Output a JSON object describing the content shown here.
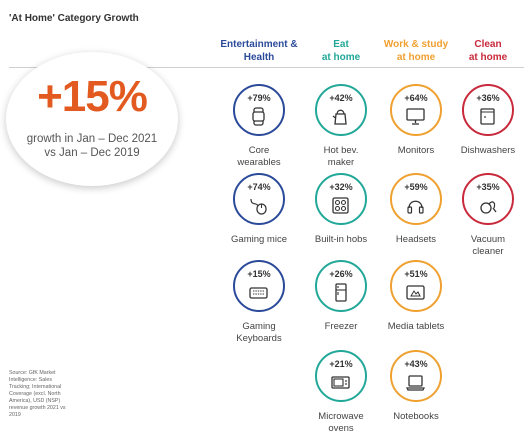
{
  "title": "'At Home' Category Growth",
  "headline": {
    "value": "+15%",
    "line1": "growth in Jan – Dec 2021",
    "line2": "vs Jan – Dec 2019"
  },
  "source": "Source: GfK Market Intelligence: Sales Tracking; International Coverage (excl. North America), USD (NSP) revenue growth 2021 vs 2019",
  "colors": {
    "entertainment": "#2b4a9a",
    "eat": "#21a898",
    "work": "#f0a030",
    "clean": "#c8293b",
    "headline": "#e35a20"
  },
  "columns": [
    {
      "id": "entertainment",
      "line1": "Entertainment &",
      "line2": "Health",
      "items": [
        {
          "pct": "+79%",
          "label1": "Core",
          "label2": "wearables",
          "icon": "smartwatch-icon"
        },
        {
          "pct": "+74%",
          "label1": "Gaming mice",
          "label2": "",
          "icon": "mouse-icon"
        },
        {
          "pct": "+15%",
          "label1": "Gaming",
          "label2": "Keyboards",
          "icon": "keyboard-icon"
        }
      ]
    },
    {
      "id": "eat",
      "line1": "Eat",
      "line2": "at home",
      "items": [
        {
          "pct": "+42%",
          "label1": "Hot bev.",
          "label2": "maker",
          "icon": "kettle-icon"
        },
        {
          "pct": "+32%",
          "label1": "Built-in hobs",
          "label2": "",
          "icon": "hob-icon"
        },
        {
          "pct": "+26%",
          "label1": "Freezer",
          "label2": "",
          "icon": "freezer-icon"
        },
        {
          "pct": "+21%",
          "label1": "Microwave",
          "label2": "ovens",
          "icon": "microwave-icon"
        }
      ]
    },
    {
      "id": "work",
      "line1": "Work & study",
      "line2": "at home",
      "items": [
        {
          "pct": "+64%",
          "label1": "Monitors",
          "label2": "",
          "icon": "monitor-icon"
        },
        {
          "pct": "+59%",
          "label1": "Headsets",
          "label2": "",
          "icon": "headset-icon"
        },
        {
          "pct": "+51%",
          "label1": "Media tablets",
          "label2": "",
          "icon": "tablet-icon"
        },
        {
          "pct": "+43%",
          "label1": "Notebooks",
          "label2": "",
          "icon": "notebook-icon"
        }
      ]
    },
    {
      "id": "clean",
      "line1": "Clean",
      "line2": "at home",
      "items": [
        {
          "pct": "+36%",
          "label1": "Dishwashers",
          "label2": "",
          "icon": "dishwasher-icon"
        },
        {
          "pct": "+35%",
          "label1": "Vacuum",
          "label2": "cleaner",
          "icon": "vacuum-icon"
        }
      ]
    }
  ]
}
